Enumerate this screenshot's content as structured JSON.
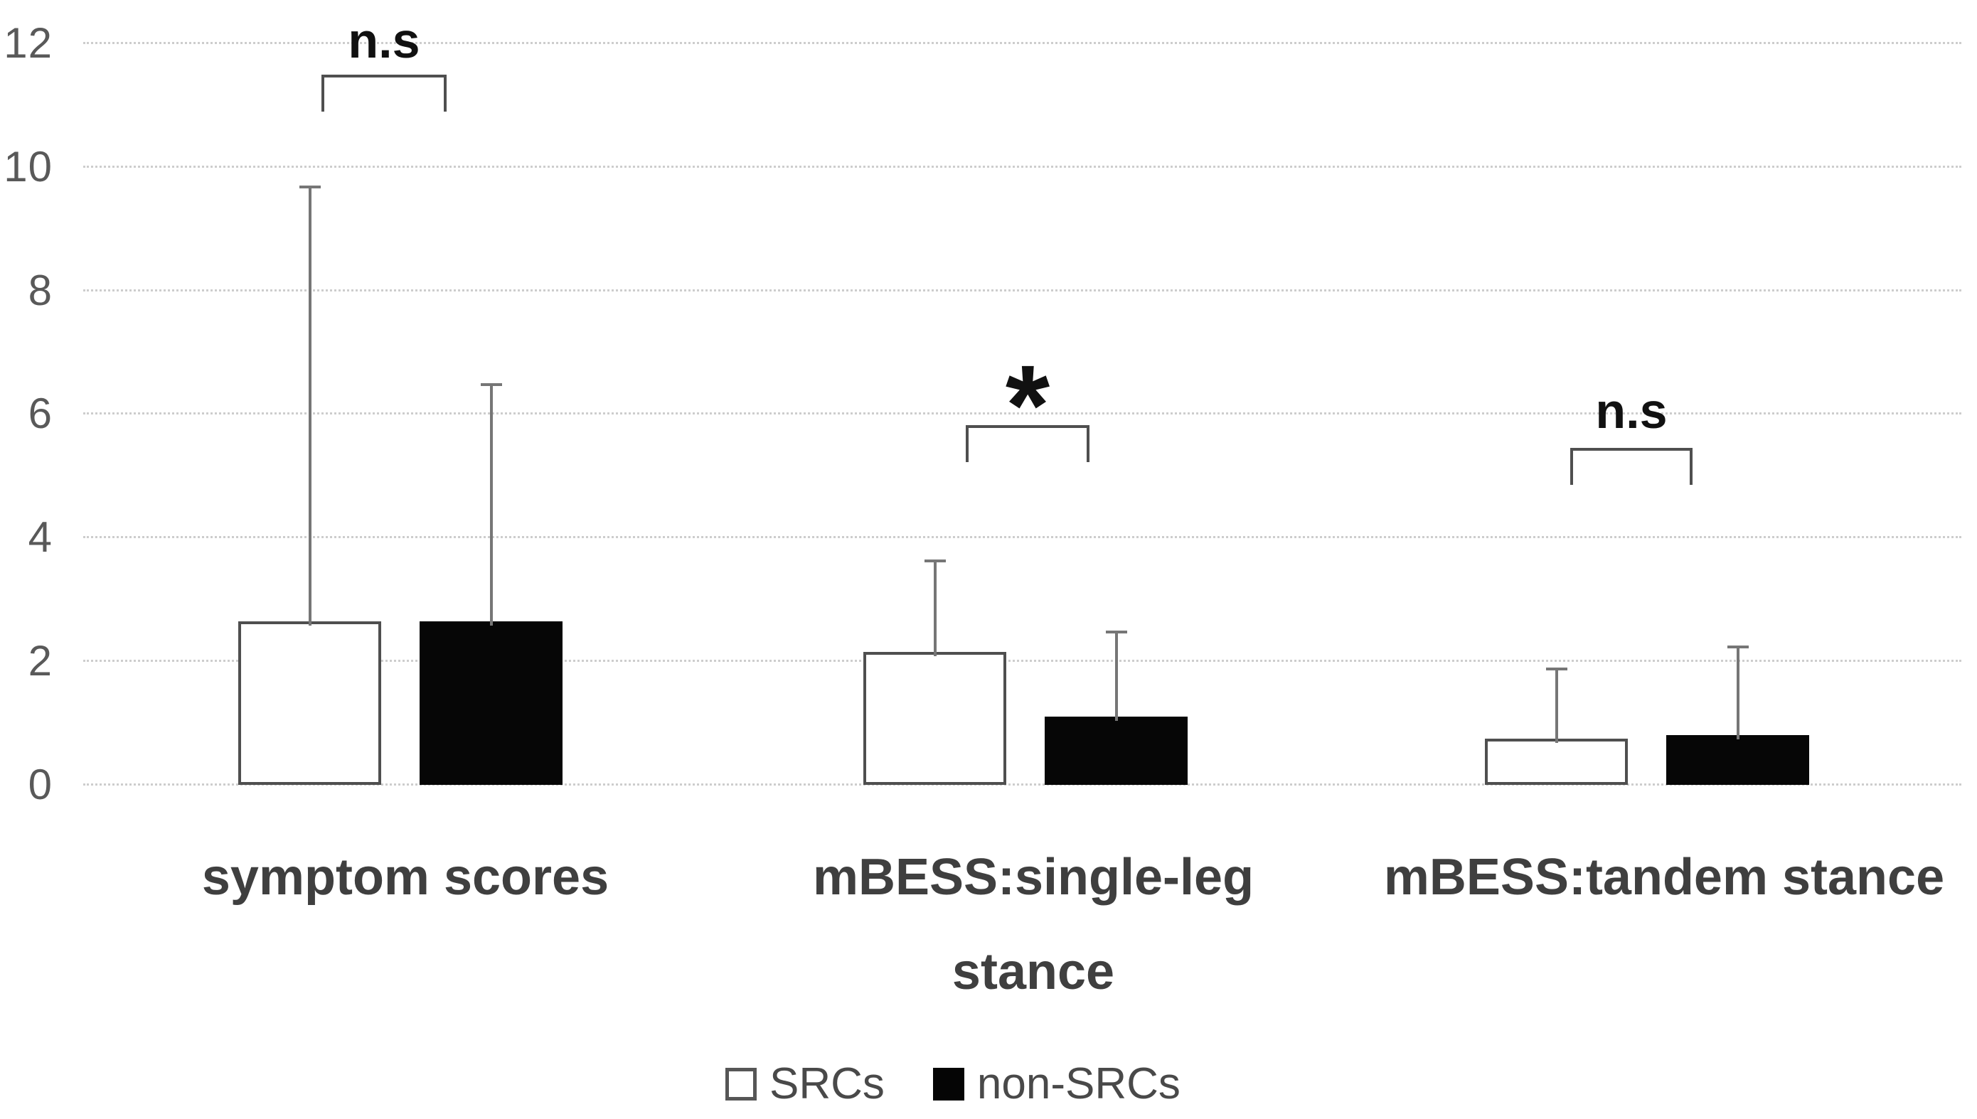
{
  "chart_data": {
    "type": "bar",
    "title": "",
    "xlabel": "",
    "ylabel": "",
    "categories": [
      {
        "label": "symptom scores",
        "lines": [
          "symptom scores"
        ]
      },
      {
        "label": "mBESS:single-leg stance",
        "lines": [
          "mBESS:single-leg",
          "stance"
        ]
      },
      {
        "label": "mBESS:tandem stance",
        "lines": [
          "mBESS:tandem stance"
        ]
      }
    ],
    "series": [
      {
        "name": "SRCs",
        "fill": "#ffffff",
        "values": [
          2.65,
          2.15,
          0.75
        ],
        "error_plus": [
          7.05,
          1.5,
          1.15
        ]
      },
      {
        "name": "non-SRCs",
        "fill": "#000000",
        "values": [
          2.65,
          1.1,
          0.8
        ],
        "error_plus": [
          3.85,
          1.4,
          1.45
        ]
      }
    ],
    "significance": [
      {
        "group": "symptom scores",
        "label": "n.s"
      },
      {
        "group": "mBESS:single-leg stance",
        "label": "*"
      },
      {
        "group": "mBESS:tandem stance",
        "label": "n.s"
      }
    ],
    "y_axis": {
      "min": 0,
      "max": 12,
      "tick_step": 2,
      "ticks": [
        0,
        2,
        4,
        6,
        8,
        10,
        12
      ]
    },
    "grid": "horizontal dotted gridlines",
    "legend_position": "bottom",
    "colors": {
      "bar_fill_srcs": "#ffffff",
      "bar_fill_non_srcs": "#000000",
      "bar_border": "#4f4f4f",
      "gridline": "#cdcdcd",
      "error_bar": "#767676",
      "sig_text": "#111111",
      "category_text": "#3f3f3f",
      "tick_text": "#595959",
      "legend_text": "#494949"
    }
  }
}
